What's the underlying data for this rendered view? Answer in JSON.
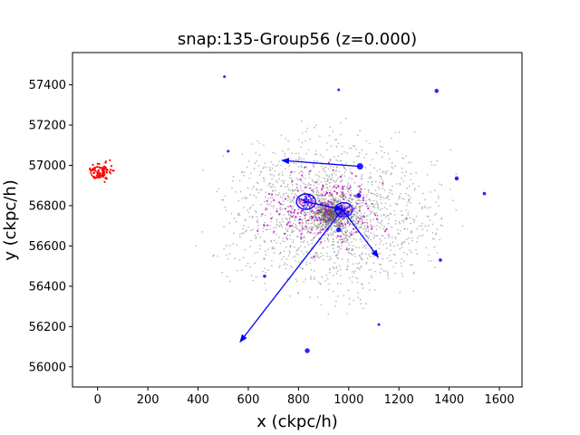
{
  "chart_data": {
    "type": "scatter",
    "title": "snap:135-Group56 (z=0.000)",
    "xlabel": "x (ckpc/h)",
    "ylabel": "y (ckpc/h)",
    "xlim": [
      -100,
      1690
    ],
    "ylim": [
      55900,
      57560
    ],
    "xticks": [
      0,
      200,
      400,
      600,
      800,
      1000,
      1200,
      1400,
      1600
    ],
    "yticks": [
      56000,
      56200,
      56400,
      56600,
      56800,
      57000,
      57200,
      57400
    ],
    "grid": false,
    "colors": {
      "particles": "#555555",
      "stars": "#cc00cc",
      "subhalos": "#0000ff",
      "outlier": "#ff0000",
      "arrows": "#0000ff"
    },
    "particle_cloud": {
      "center": [
        930,
        56760
      ],
      "spread": [
        250,
        230
      ],
      "approx_count": 2600
    },
    "subhalos": [
      {
        "x": 830,
        "y": 56820,
        "r": 38
      },
      {
        "x": 980,
        "y": 56780,
        "r": 35
      },
      {
        "x": 1045,
        "y": 56995,
        "r": 8
      },
      {
        "x": 1040,
        "y": 56850,
        "r": 6
      },
      {
        "x": 960,
        "y": 56680,
        "r": 6
      },
      {
        "x": 1350,
        "y": 57370,
        "r": 5
      },
      {
        "x": 1430,
        "y": 56935,
        "r": 5
      },
      {
        "x": 1365,
        "y": 56530,
        "r": 4
      },
      {
        "x": 1540,
        "y": 56860,
        "r": 4
      },
      {
        "x": 665,
        "y": 56450,
        "r": 4
      },
      {
        "x": 1120,
        "y": 56210,
        "r": 3
      },
      {
        "x": 835,
        "y": 56080,
        "r": 6
      },
      {
        "x": 960,
        "y": 57375,
        "r": 3
      },
      {
        "x": 520,
        "y": 57070,
        "r": 3
      },
      {
        "x": 505,
        "y": 57440,
        "r": 3
      }
    ],
    "outlier_group": {
      "x": 0,
      "y": 56965,
      "r": 30
    },
    "arrows": [
      {
        "from": [
          1045,
          56995
        ],
        "to": [
          730,
          57025
        ]
      },
      {
        "from": [
          830,
          56820
        ],
        "to": [
          980,
          56780
        ]
      },
      {
        "from": [
          975,
          56780
        ],
        "to": [
          565,
          56120
        ]
      },
      {
        "from": [
          975,
          56780
        ],
        "to": [
          1120,
          56540
        ]
      }
    ]
  }
}
